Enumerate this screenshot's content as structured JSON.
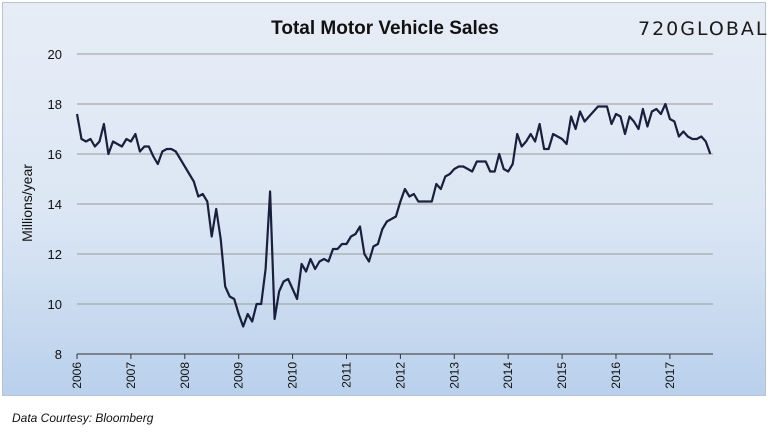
{
  "logo_text": "720GLOBAL",
  "source_note": "Data Courtesy: Bloomberg",
  "colors": {
    "line": "#1a1f3c",
    "background_top": "#e7edf6",
    "background_bottom": "#b9d0ec",
    "grid": "#9a9a9a"
  },
  "chart_data": {
    "type": "line",
    "title": "Total Motor Vehicle Sales",
    "xlabel": "",
    "ylabel": "Millions/year",
    "ylim": [
      8,
      20
    ],
    "yticks": [
      8,
      10,
      12,
      14,
      16,
      18,
      20
    ],
    "xlim": [
      2006.0,
      2017.8
    ],
    "xticks": [
      "2006",
      "2007",
      "2008",
      "2009",
      "2010",
      "2011",
      "2012",
      "2013",
      "2014",
      "2015",
      "2016",
      "2017"
    ],
    "grid": "horizontal",
    "legend": "none",
    "series": [
      {
        "x": [
          2006.0,
          2006.083,
          2006.167,
          2006.25,
          2006.333,
          2006.417,
          2006.5,
          2006.583,
          2006.667,
          2006.75,
          2006.833,
          2006.917,
          2007.0,
          2007.083,
          2007.167,
          2007.25,
          2007.333,
          2007.417,
          2007.5,
          2007.583,
          2007.667,
          2007.75,
          2007.833,
          2007.917,
          2008.0,
          2008.083,
          2008.167,
          2008.25,
          2008.333,
          2008.417,
          2008.5,
          2008.583,
          2008.667,
          2008.75,
          2008.833,
          2008.917,
          2009.0,
          2009.083,
          2009.167,
          2009.25,
          2009.333,
          2009.417,
          2009.5,
          2009.583,
          2009.667,
          2009.75,
          2009.833,
          2009.917,
          2010.0,
          2010.083,
          2010.167,
          2010.25,
          2010.333,
          2010.417,
          2010.5,
          2010.583,
          2010.667,
          2010.75,
          2010.833,
          2010.917,
          2011.0,
          2011.083,
          2011.167,
          2011.25,
          2011.333,
          2011.417,
          2011.5,
          2011.583,
          2011.667,
          2011.75,
          2011.833,
          2011.917,
          2012.0,
          2012.083,
          2012.167,
          2012.25,
          2012.333,
          2012.417,
          2012.5,
          2012.583,
          2012.667,
          2012.75,
          2012.833,
          2012.917,
          2013.0,
          2013.083,
          2013.167,
          2013.25,
          2013.333,
          2013.417,
          2013.5,
          2013.583,
          2013.667,
          2013.75,
          2013.833,
          2013.917,
          2014.0,
          2014.083,
          2014.167,
          2014.25,
          2014.333,
          2014.417,
          2014.5,
          2014.583,
          2014.667,
          2014.75,
          2014.833,
          2014.917,
          2015.0,
          2015.083,
          2015.167,
          2015.25,
          2015.333,
          2015.417,
          2015.5,
          2015.583,
          2015.667,
          2015.75,
          2015.833,
          2015.917,
          2016.0,
          2016.083,
          2016.167,
          2016.25,
          2016.333,
          2016.417,
          2016.5,
          2016.583,
          2016.667,
          2016.75,
          2016.833,
          2016.917,
          2017.0,
          2017.083,
          2017.167,
          2017.25,
          2017.333,
          2017.417,
          2017.5,
          2017.583,
          2017.667,
          2017.75
        ],
        "values": [
          17.6,
          16.6,
          16.5,
          16.6,
          16.3,
          16.5,
          17.2,
          16.0,
          16.5,
          16.4,
          16.3,
          16.6,
          16.5,
          16.8,
          16.1,
          16.3,
          16.3,
          15.9,
          15.6,
          16.1,
          16.2,
          16.2,
          16.1,
          15.8,
          15.5,
          15.2,
          14.9,
          14.3,
          14.4,
          14.1,
          12.7,
          13.8,
          12.6,
          10.7,
          10.3,
          10.2,
          9.6,
          9.1,
          9.6,
          9.3,
          10.0,
          10.0,
          11.4,
          14.5,
          9.4,
          10.5,
          10.9,
          11.0,
          10.6,
          10.2,
          11.6,
          11.3,
          11.8,
          11.4,
          11.7,
          11.8,
          11.7,
          12.2,
          12.2,
          12.4,
          12.4,
          12.7,
          12.8,
          13.1,
          12.0,
          11.7,
          12.3,
          12.4,
          13.0,
          13.3,
          13.4,
          13.5,
          14.1,
          14.6,
          14.3,
          14.4,
          14.1,
          14.1,
          14.1,
          14.1,
          14.8,
          14.6,
          15.1,
          15.2,
          15.4,
          15.5,
          15.5,
          15.4,
          15.3,
          15.7,
          15.7,
          15.7,
          15.3,
          15.3,
          16.0,
          15.4,
          15.3,
          15.6,
          16.8,
          16.3,
          16.5,
          16.8,
          16.5,
          17.2,
          16.2,
          16.2,
          16.8,
          16.7,
          16.6,
          16.4,
          17.5,
          17.0,
          17.7,
          17.3,
          17.5,
          17.7,
          17.9,
          17.9,
          17.9,
          17.2,
          17.6,
          17.5,
          16.8,
          17.5,
          17.3,
          17.0,
          17.8,
          17.1,
          17.7,
          17.8,
          17.6,
          18.0,
          17.4,
          17.3,
          16.7,
          16.9,
          16.7,
          16.6,
          16.6,
          16.7,
          16.5,
          16.0
        ]
      }
    ]
  }
}
